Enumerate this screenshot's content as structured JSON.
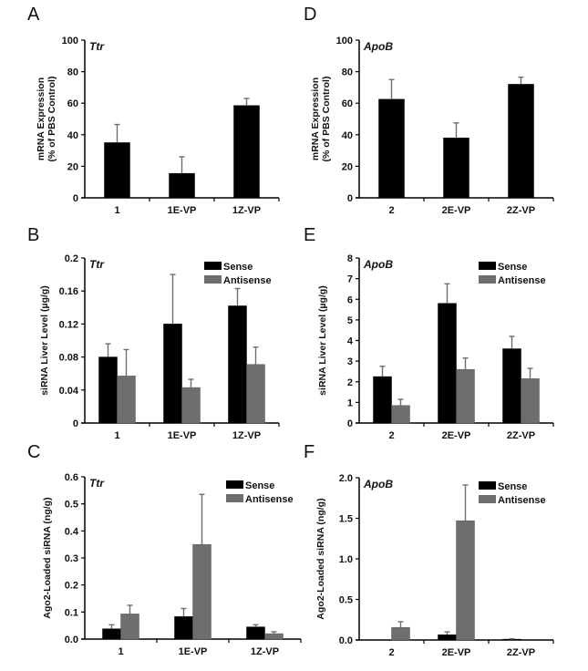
{
  "colors": {
    "sense": "#000000",
    "antisense": "#6e6e6e",
    "axis": "#000000",
    "error": "#6e6e6e"
  },
  "chart_data": [
    {
      "panel": "A",
      "type": "bar",
      "gene": "Ttr",
      "ylabel": [
        "mRNA Expression",
        "(% of PBS Control)"
      ],
      "xlabel": "",
      "categories": [
        "1",
        "1E-VP",
        "1Z-VP"
      ],
      "ylim": [
        0,
        100
      ],
      "yticks": [
        0,
        20,
        40,
        60,
        80,
        100
      ],
      "ytick_labels": [
        "0",
        "20",
        "40",
        "60",
        "80",
        "100"
      ],
      "legend": null,
      "series": [
        {
          "name": "mRNA",
          "color_key": "sense",
          "values": [
            35,
            15.5,
            58.5
          ],
          "errors": [
            11.5,
            10.5,
            4.5
          ]
        }
      ]
    },
    {
      "panel": "B",
      "type": "bar",
      "gene": "Ttr",
      "ylabel": [
        "siRNA  Liver Level (µg/g)"
      ],
      "xlabel": "",
      "categories": [
        "1",
        "1E-VP",
        "1Z-VP"
      ],
      "ylim": [
        0,
        0.2
      ],
      "yticks": [
        0,
        0.04,
        0.08,
        0.12,
        0.16,
        0.2
      ],
      "ytick_labels": [
        "0",
        "0.04",
        "0.08",
        "0.12",
        "0.16",
        "0.2"
      ],
      "legend": "top-right",
      "series": [
        {
          "name": "Sense",
          "color_key": "sense",
          "values": [
            0.08,
            0.12,
            0.142
          ],
          "errors": [
            0.016,
            0.06,
            0.021
          ]
        },
        {
          "name": "Antisense",
          "color_key": "antisense",
          "values": [
            0.057,
            0.043,
            0.071
          ],
          "errors": [
            0.032,
            0.01,
            0.021
          ]
        }
      ]
    },
    {
      "panel": "C",
      "type": "bar",
      "gene": "Ttr",
      "ylabel": [
        "Ago2-Loaded siRNA  (ng/g)"
      ],
      "xlabel": "",
      "categories": [
        "1",
        "1E-VP",
        "1Z-VP"
      ],
      "ylim": [
        0,
        0.6
      ],
      "yticks": [
        0,
        0.1,
        0.2,
        0.3,
        0.4,
        0.5,
        0.6
      ],
      "ytick_labels": [
        "0.0",
        "0.1",
        "0.2",
        "0.3",
        "0.4",
        "0.5",
        "0.6"
      ],
      "legend": "top-right",
      "series": [
        {
          "name": "Sense",
          "color_key": "sense",
          "values": [
            0.038,
            0.083,
            0.045
          ],
          "errors": [
            0.015,
            0.03,
            0.008
          ]
        },
        {
          "name": "Antisense",
          "color_key": "antisense",
          "values": [
            0.093,
            0.35,
            0.02
          ],
          "errors": [
            0.032,
            0.185,
            0.007
          ]
        }
      ]
    },
    {
      "panel": "D",
      "type": "bar",
      "gene": "ApoB",
      "ylabel": [
        "mRNA Expression",
        "(% of PBS Control)"
      ],
      "xlabel": "",
      "categories": [
        "2",
        "2E-VP",
        "2Z-VP"
      ],
      "ylim": [
        0,
        100
      ],
      "yticks": [
        0,
        20,
        40,
        60,
        80,
        100
      ],
      "ytick_labels": [
        "0",
        "20",
        "40",
        "60",
        "80",
        "100"
      ],
      "legend": null,
      "series": [
        {
          "name": "mRNA",
          "color_key": "sense",
          "values": [
            62.5,
            38,
            72
          ],
          "errors": [
            12.5,
            9.5,
            4.5
          ]
        }
      ]
    },
    {
      "panel": "E",
      "type": "bar",
      "gene": "ApoB",
      "ylabel": [
        "siRNA  Liver Level (µg/g)"
      ],
      "xlabel": "",
      "categories": [
        "2",
        "2E-VP",
        "2Z-VP"
      ],
      "ylim": [
        0,
        8
      ],
      "yticks": [
        0,
        1,
        2,
        3,
        4,
        5,
        6,
        7,
        8
      ],
      "ytick_labels": [
        "0",
        "1",
        "2",
        "3",
        "4",
        "5",
        "6",
        "7",
        "8"
      ],
      "legend": "top-right",
      "series": [
        {
          "name": "Sense",
          "color_key": "sense",
          "values": [
            2.25,
            5.8,
            3.6
          ],
          "errors": [
            0.5,
            0.95,
            0.6
          ]
        },
        {
          "name": "Antisense",
          "color_key": "antisense",
          "values": [
            0.85,
            2.6,
            2.15
          ],
          "errors": [
            0.3,
            0.55,
            0.5
          ]
        }
      ]
    },
    {
      "panel": "F",
      "type": "bar",
      "gene": "ApoB",
      "ylabel": [
        "Ago2-Loaded siRNA  (ng/g)"
      ],
      "xlabel": "",
      "categories": [
        "2",
        "2E-VP",
        "2Z-VP"
      ],
      "ylim": [
        0,
        2.0
      ],
      "yticks": [
        0,
        0.5,
        1.0,
        1.5,
        2.0
      ],
      "ytick_labels": [
        "0.0",
        "0.5",
        "1.0",
        "1.5",
        "2.0"
      ],
      "legend": "top-right",
      "series": [
        {
          "name": "Sense",
          "color_key": "sense",
          "values": [
            0.0,
            0.065,
            0.01
          ],
          "errors": [
            0,
            0.035,
            0.005
          ]
        },
        {
          "name": "Antisense",
          "color_key": "antisense",
          "values": [
            0.155,
            1.47,
            0.0
          ],
          "errors": [
            0.07,
            0.44,
            0
          ]
        }
      ]
    }
  ]
}
